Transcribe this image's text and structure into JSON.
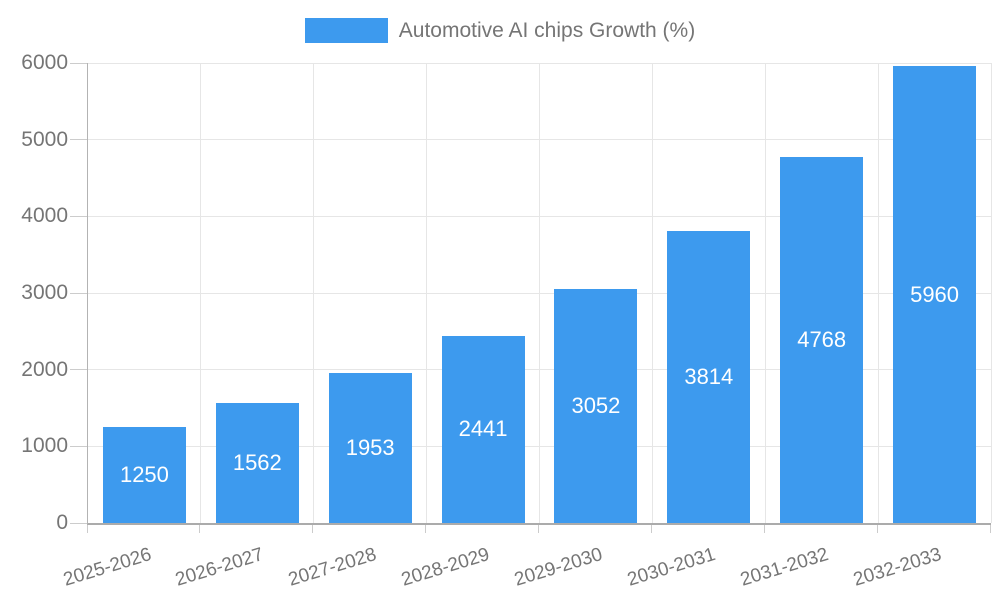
{
  "chart_data": {
    "type": "bar",
    "title": "",
    "legend": {
      "position": "top",
      "label": "Automotive AI chips Growth (%)"
    },
    "categories": [
      "2025-2026",
      "2026-2027",
      "2027-2028",
      "2028-2029",
      "2029-2030",
      "2030-2031",
      "2031-2032",
      "2032-2033"
    ],
    "series": [
      {
        "name": "Automotive AI chips Growth (%)",
        "values": [
          1250,
          1562,
          1953,
          2441,
          3052,
          3814,
          4768,
          5960
        ]
      }
    ],
    "xlabel": "",
    "ylabel": "",
    "ylim": [
      0,
      6000
    ],
    "yticks": [
      0,
      1000,
      2000,
      3000,
      4000,
      5000,
      6000
    ],
    "grid": true,
    "value_labels_position": "inside-center",
    "x_tick_rotation_deg": -17
  },
  "colors": {
    "bar": "#3d9aee",
    "value_label": "#ffffff",
    "axis_label": "#757575",
    "legend_text": "#757575",
    "gridline": "#e6e6e6",
    "tick": "#cccccc",
    "axis_line_left": "#b3b3b3",
    "axis_line_bottom": "#ababab",
    "background": "#ffffff"
  }
}
